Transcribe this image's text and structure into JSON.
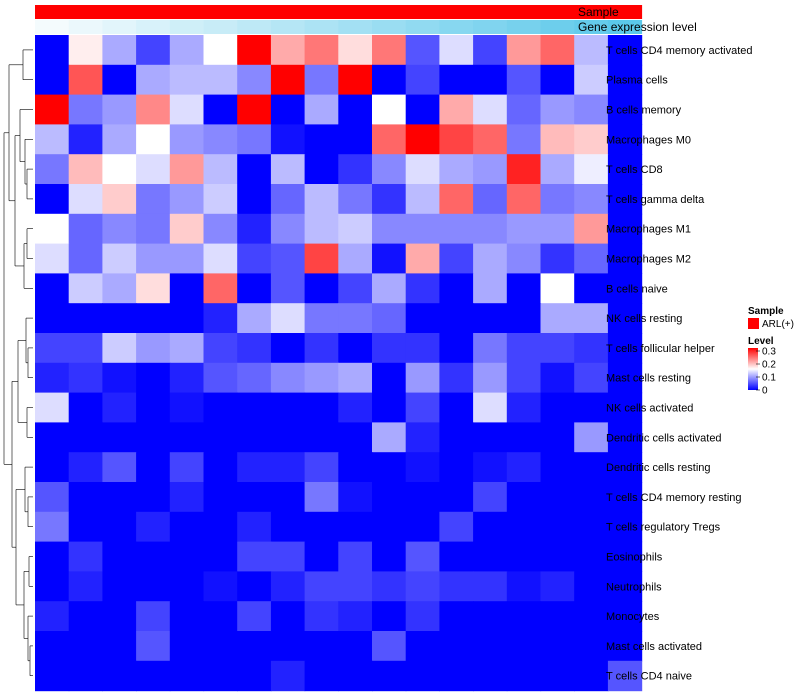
{
  "chart_data": {
    "type": "heatmap",
    "annotations": [
      {
        "name": "Sample",
        "color": "#ff0000"
      },
      {
        "name": "Gene expression level",
        "color_low": "#f4fbfd",
        "color_high": "#5bc8ea"
      }
    ],
    "columns": 18,
    "rows": [
      "T cells CD4 memory activated",
      "Plasma cells",
      "B cells memory",
      "Macrophages M0",
      "T cells CD8",
      "T cells gamma delta",
      "Macrophages M1",
      "Macrophages M2",
      "B cells naive",
      "NK cells resting",
      "T cells follicular helper",
      "Mast cells resting",
      "NK cells activated",
      "Dendritic cells activated",
      "Dendritic cells resting",
      "T cells CD4 memory resting",
      "T cells regulatory  Tregs",
      "Eosinophils",
      "Neutrophils",
      "Monocytes",
      "Mast cells activated",
      "T cells CD4 naive"
    ],
    "values": [
      [
        0.0,
        0.16,
        0.1,
        0.04,
        0.1,
        0.15,
        0.3,
        0.2,
        0.23,
        0.17,
        0.23,
        0.05,
        0.13,
        0.04,
        0.21,
        0.24,
        0.11,
        0.0
      ],
      [
        0.0,
        0.25,
        0.0,
        0.1,
        0.11,
        0.11,
        0.08,
        0.3,
        0.07,
        0.31,
        0.0,
        0.04,
        0.0,
        0.0,
        0.05,
        0.0,
        0.12,
        0.0
      ],
      [
        0.3,
        0.07,
        0.09,
        0.22,
        0.13,
        0.0,
        0.3,
        0.0,
        0.1,
        0.0,
        0.15,
        0.0,
        0.2,
        0.13,
        0.06,
        0.09,
        0.08,
        0.0
      ],
      [
        0.11,
        0.02,
        0.1,
        0.15,
        0.09,
        0.08,
        0.07,
        0.01,
        0.0,
        0.0,
        0.24,
        0.31,
        0.26,
        0.24,
        0.07,
        0.19,
        0.18,
        0.0
      ],
      [
        0.07,
        0.19,
        0.15,
        0.13,
        0.21,
        0.11,
        0.0,
        0.11,
        0.0,
        0.03,
        0.08,
        0.13,
        0.1,
        0.09,
        0.28,
        0.1,
        0.14,
        0.0
      ],
      [
        0.0,
        0.13,
        0.18,
        0.07,
        0.09,
        0.12,
        0.0,
        0.06,
        0.11,
        0.07,
        0.03,
        0.11,
        0.24,
        0.06,
        0.24,
        0.07,
        0.08,
        0.0
      ],
      [
        0.15,
        0.06,
        0.08,
        0.07,
        0.18,
        0.08,
        0.02,
        0.08,
        0.11,
        0.12,
        0.08,
        0.08,
        0.08,
        0.08,
        0.09,
        0.09,
        0.21,
        0.0
      ],
      [
        0.13,
        0.06,
        0.12,
        0.09,
        0.09,
        0.13,
        0.04,
        0.05,
        0.26,
        0.1,
        0.01,
        0.2,
        0.04,
        0.1,
        0.08,
        0.03,
        0.06,
        0.0
      ],
      [
        0.0,
        0.12,
        0.1,
        0.17,
        0.0,
        0.24,
        0.0,
        0.05,
        0.0,
        0.04,
        0.1,
        0.03,
        0.0,
        0.1,
        0.0,
        0.15,
        0.0,
        0.0
      ],
      [
        0.0,
        0.0,
        0.0,
        0.0,
        0.0,
        0.02,
        0.1,
        0.13,
        0.07,
        0.07,
        0.06,
        0.0,
        0.0,
        0.0,
        0.0,
        0.1,
        0.1,
        0.0
      ],
      [
        0.04,
        0.04,
        0.12,
        0.09,
        0.1,
        0.04,
        0.03,
        0.0,
        0.03,
        0.0,
        0.03,
        0.03,
        0.0,
        0.07,
        0.04,
        0.04,
        0.03,
        0.0
      ],
      [
        0.02,
        0.03,
        0.01,
        0.0,
        0.02,
        0.05,
        0.06,
        0.08,
        0.09,
        0.1,
        0.0,
        0.09,
        0.03,
        0.09,
        0.04,
        0.01,
        0.04,
        0.0
      ],
      [
        0.13,
        0.0,
        0.02,
        0.0,
        0.01,
        0.0,
        0.0,
        0.0,
        0.0,
        0.02,
        0.0,
        0.04,
        0.0,
        0.13,
        0.02,
        0.0,
        0.0,
        0.0
      ],
      [
        0.0,
        0.0,
        0.0,
        0.0,
        0.0,
        0.0,
        0.0,
        0.0,
        0.0,
        0.0,
        0.1,
        0.02,
        0.0,
        0.0,
        0.0,
        0.0,
        0.09,
        0.0
      ],
      [
        0.0,
        0.02,
        0.05,
        0.0,
        0.04,
        0.0,
        0.02,
        0.02,
        0.04,
        0.0,
        0.0,
        0.01,
        0.0,
        0.01,
        0.02,
        0.0,
        0.0,
        0.0
      ],
      [
        0.05,
        0.0,
        0.0,
        0.0,
        0.02,
        0.0,
        0.0,
        0.0,
        0.07,
        0.01,
        0.0,
        0.0,
        0.0,
        0.04,
        0.0,
        0.0,
        0.0,
        0.0
      ],
      [
        0.07,
        0.0,
        0.0,
        0.02,
        0.0,
        0.0,
        0.02,
        0.0,
        0.0,
        0.0,
        0.0,
        0.0,
        0.04,
        0.0,
        0.0,
        0.0,
        0.0,
        0.0
      ],
      [
        0.0,
        0.03,
        0.0,
        0.0,
        0.0,
        0.0,
        0.04,
        0.04,
        0.0,
        0.04,
        0.0,
        0.05,
        0.0,
        0.0,
        0.0,
        0.0,
        0.0,
        0.0
      ],
      [
        0.0,
        0.02,
        0.0,
        0.0,
        0.0,
        0.01,
        0.0,
        0.02,
        0.04,
        0.04,
        0.03,
        0.04,
        0.03,
        0.03,
        0.01,
        0.02,
        0.0,
        0.0
      ],
      [
        0.02,
        0.0,
        0.0,
        0.04,
        0.0,
        0.0,
        0.04,
        0.0,
        0.03,
        0.02,
        0.0,
        0.03,
        0.0,
        0.0,
        0.0,
        0.0,
        0.0,
        0.0
      ],
      [
        0.0,
        0.0,
        0.0,
        0.05,
        0.0,
        0.0,
        0.0,
        0.0,
        0.0,
        0.0,
        0.05,
        0.0,
        0.0,
        0.0,
        0.0,
        0.0,
        0.0,
        0.0
      ],
      [
        0.0,
        0.0,
        0.0,
        0.0,
        0.0,
        0.0,
        0.0,
        0.02,
        0.0,
        0.0,
        0.0,
        0.0,
        0.0,
        0.0,
        0.0,
        0.0,
        0.0,
        0.05
      ]
    ],
    "gene_expression_level": [
      0.0,
      0.06,
      0.12,
      0.18,
      0.24,
      0.29,
      0.35,
      0.41,
      0.47,
      0.53,
      0.59,
      0.65,
      0.71,
      0.76,
      0.82,
      0.88,
      0.94,
      1.0
    ],
    "legend": {
      "sample_title": "Sample",
      "sample_entry": "ARL(+)",
      "sample_color": "#ff0000",
      "level_title": "Level",
      "ticks": [
        0.3,
        0.2,
        0.1,
        0
      ],
      "tick_labels": [
        "0.3",
        "0.2",
        "0.1",
        "0"
      ],
      "range": [
        0,
        0.3
      ],
      "placement": "right"
    },
    "colors": {
      "low": "#0000ff",
      "mid": "#ffffff",
      "high": "#ff0000"
    }
  }
}
